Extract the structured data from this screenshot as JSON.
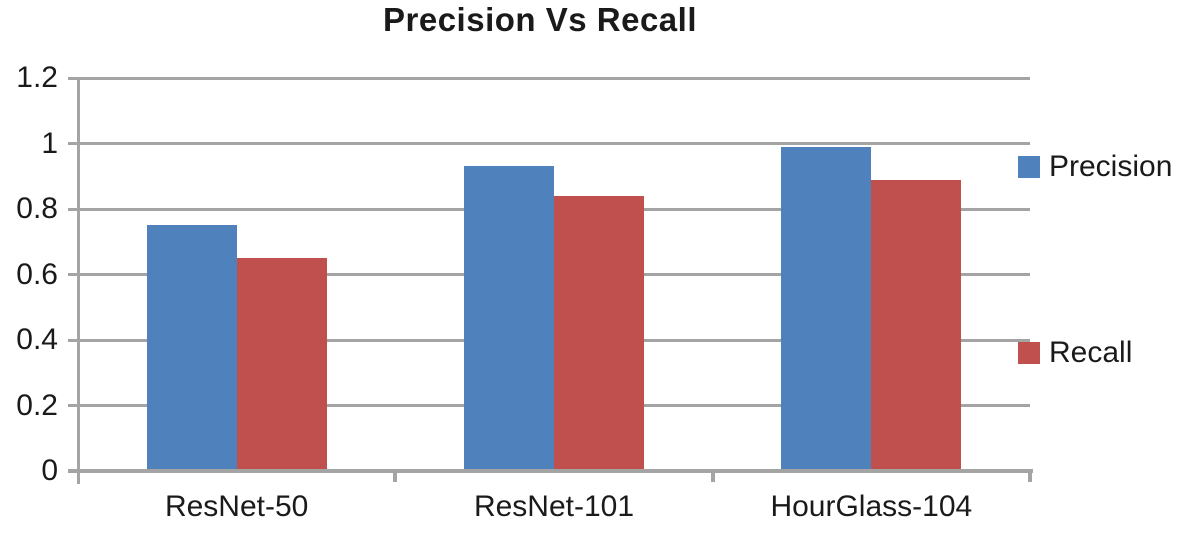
{
  "chart_data": {
    "type": "bar",
    "title": "Precision Vs Recall",
    "categories": [
      "ResNet-50",
      "ResNet-101",
      "HourGlass-104"
    ],
    "series": [
      {
        "name": "Precision",
        "color": "#4F81BD",
        "values": [
          0.75,
          0.93,
          0.99
        ]
      },
      {
        "name": "Recall",
        "color": "#C0504D",
        "values": [
          0.65,
          0.84,
          0.89
        ]
      }
    ],
    "xlabel": "",
    "ylabel": "",
    "ylim": [
      0,
      1.2
    ],
    "yticks": [
      {
        "value": 0,
        "label": "0"
      },
      {
        "value": 0.2,
        "label": "0.2"
      },
      {
        "value": 0.4,
        "label": "0.4"
      },
      {
        "value": 0.6,
        "label": "0.6"
      },
      {
        "value": 0.8,
        "label": "0.8"
      },
      {
        "value": 1,
        "label": "1"
      },
      {
        "value": 1.2,
        "label": "1.2"
      }
    ],
    "grid": "horizontal",
    "legend_position": "right"
  },
  "colors": {
    "precision_bar": "#4F81BD",
    "recall_bar": "#C0504D",
    "gridline": "#A4A4A4",
    "axis": "#A4A4A4",
    "text": "#1A1A1A",
    "background": "#FFFFFF"
  }
}
